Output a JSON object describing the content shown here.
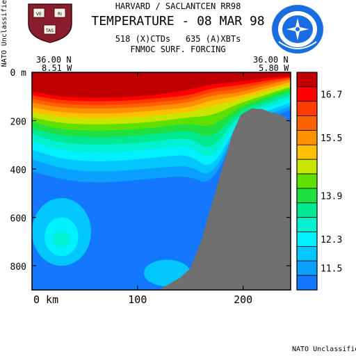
{
  "header": {
    "institution": "HARVARD / SACLANTCEN RR98",
    "title": "TEMPERATURE - 08 MAR 98",
    "obs_counts": "518 (X)CTDs   635 (A)XBTs",
    "forcing": "FNMOC SURF. FORCING",
    "classification_side": "NATO Unclassified",
    "classification_footer": "NATO Unclassified",
    "crest_letters": [
      "VE",
      "RI",
      "TAS"
    ],
    "crest_name": "harvard-crest-icon",
    "emblem_name": "nato-emblem-icon"
  },
  "section": {
    "left_lat": "36.00 N",
    "left_lon": "8.51 W",
    "right_lat": "36.00 N",
    "right_lon": "5.80 W"
  },
  "chart_data": {
    "type": "heatmap",
    "title": "TEMPERATURE - 08 MAR 98",
    "xlabel": "",
    "ylabel": "",
    "x_unit": "km",
    "y_unit": "m",
    "xlim": [
      0,
      245
    ],
    "ylim": [
      900,
      0
    ],
    "x_ticks": [
      0,
      100,
      200
    ],
    "x_tick_labels": [
      "0 km",
      "100",
      "200"
    ],
    "y_ticks": [
      0,
      200,
      400,
      600,
      800
    ],
    "y_tick_labels": [
      "0 m",
      "200",
      "400",
      "600",
      "800"
    ],
    "colorbar": {
      "levels": [
        {
          "color": "#c00000",
          "label": ""
        },
        {
          "color": "#ff0000",
          "label": "16.7"
        },
        {
          "color": "#ff3c00",
          "label": ""
        },
        {
          "color": "#ff6000",
          "label": ""
        },
        {
          "color": "#ff9000",
          "label": "15.5"
        },
        {
          "color": "#ffc000",
          "label": ""
        },
        {
          "color": "#c8e600",
          "label": ""
        },
        {
          "color": "#60e000",
          "label": ""
        },
        {
          "color": "#20e040",
          "label": "13.9"
        },
        {
          "color": "#00e890",
          "label": ""
        },
        {
          "color": "#00f0d0",
          "label": ""
        },
        {
          "color": "#00f0ff",
          "label": "12.3"
        },
        {
          "color": "#00c8ff",
          "label": ""
        },
        {
          "color": "#0aa0ff",
          "label": "11.5"
        },
        {
          "color": "#1478ff",
          "label": ""
        }
      ]
    },
    "seafloor_profile": [
      {
        "x": 120,
        "depth": 900
      },
      {
        "x": 128,
        "depth": 880
      },
      {
        "x": 140,
        "depth": 850
      },
      {
        "x": 150,
        "depth": 810
      },
      {
        "x": 160,
        "depth": 700
      },
      {
        "x": 172,
        "depth": 520
      },
      {
        "x": 182,
        "depth": 370
      },
      {
        "x": 190,
        "depth": 250
      },
      {
        "x": 198,
        "depth": 175
      },
      {
        "x": 208,
        "depth": 150
      },
      {
        "x": 218,
        "depth": 152
      },
      {
        "x": 226,
        "depth": 165
      },
      {
        "x": 232,
        "depth": 170
      },
      {
        "x": 240,
        "depth": 185
      },
      {
        "x": 245,
        "depth": 215
      }
    ],
    "isotherm_depths": [
      {
        "level": 0,
        "depths": [
          80,
          100,
          105,
          105,
          100,
          90,
          70,
          50,
          40,
          25,
          15
        ]
      },
      {
        "level": 1,
        "depths": [
          95,
          115,
          120,
          120,
          115,
          105,
          95,
          65,
          55,
          35,
          20
        ]
      },
      {
        "level": 2,
        "depths": [
          110,
          130,
          135,
          135,
          130,
          120,
          110,
          80,
          70,
          45,
          25
        ]
      },
      {
        "level": 3,
        "depths": [
          125,
          145,
          150,
          150,
          145,
          135,
          125,
          95,
          85,
          55,
          30
        ]
      },
      {
        "level": 4,
        "depths": [
          145,
          165,
          170,
          170,
          165,
          155,
          145,
          115,
          100,
          70,
          40
        ]
      },
      {
        "level": 5,
        "depths": [
          165,
          185,
          190,
          190,
          185,
          175,
          165,
          140,
          115,
          80,
          50
        ]
      },
      {
        "level": 6,
        "depths": [
          185,
          210,
          215,
          215,
          210,
          200,
          185,
          180,
          130,
          95,
          60
        ]
      },
      {
        "level": 7,
        "depths": [
          205,
          235,
          240,
          240,
          235,
          225,
          210,
          230,
          145,
          105,
          70
        ]
      },
      {
        "level": 8,
        "depths": [
          230,
          260,
          268,
          268,
          262,
          250,
          238,
          280,
          160,
          120,
          80
        ]
      },
      {
        "level": 9,
        "depths": [
          255,
          290,
          298,
          298,
          292,
          280,
          268,
          330,
          175,
          135,
          95
        ]
      },
      {
        "level": 10,
        "depths": [
          285,
          320,
          330,
          330,
          325,
          312,
          300,
          375,
          190,
          150,
          110
        ]
      },
      {
        "level": 11,
        "depths": [
          320,
          355,
          368,
          368,
          360,
          348,
          340,
          410,
          205,
          165,
          125
        ]
      },
      {
        "level": 12,
        "depths": [
          360,
          395,
          410,
          410,
          402,
          392,
          385,
          440,
          220,
          180,
          140
        ]
      },
      {
        "level": 13,
        "depths": [
          410,
          440,
          455,
          455,
          445,
          435,
          430,
          470,
          235,
          195,
          155
        ]
      }
    ],
    "x_columns": [
      0,
      25,
      50,
      75,
      100,
      125,
      150,
      170,
      195,
      220,
      245
    ],
    "deep_features": [
      {
        "x": 28,
        "depth": 660,
        "rx": 28,
        "ry": 140,
        "level": 12
      },
      {
        "x": 28,
        "depth": 680,
        "rx": 16,
        "ry": 80,
        "level": 11
      },
      {
        "x": 28,
        "depth": 690,
        "rx": 8,
        "ry": 30,
        "level": 10
      },
      {
        "x": 128,
        "depth": 830,
        "rx": 22,
        "ry": 55,
        "level": 12
      }
    ]
  }
}
